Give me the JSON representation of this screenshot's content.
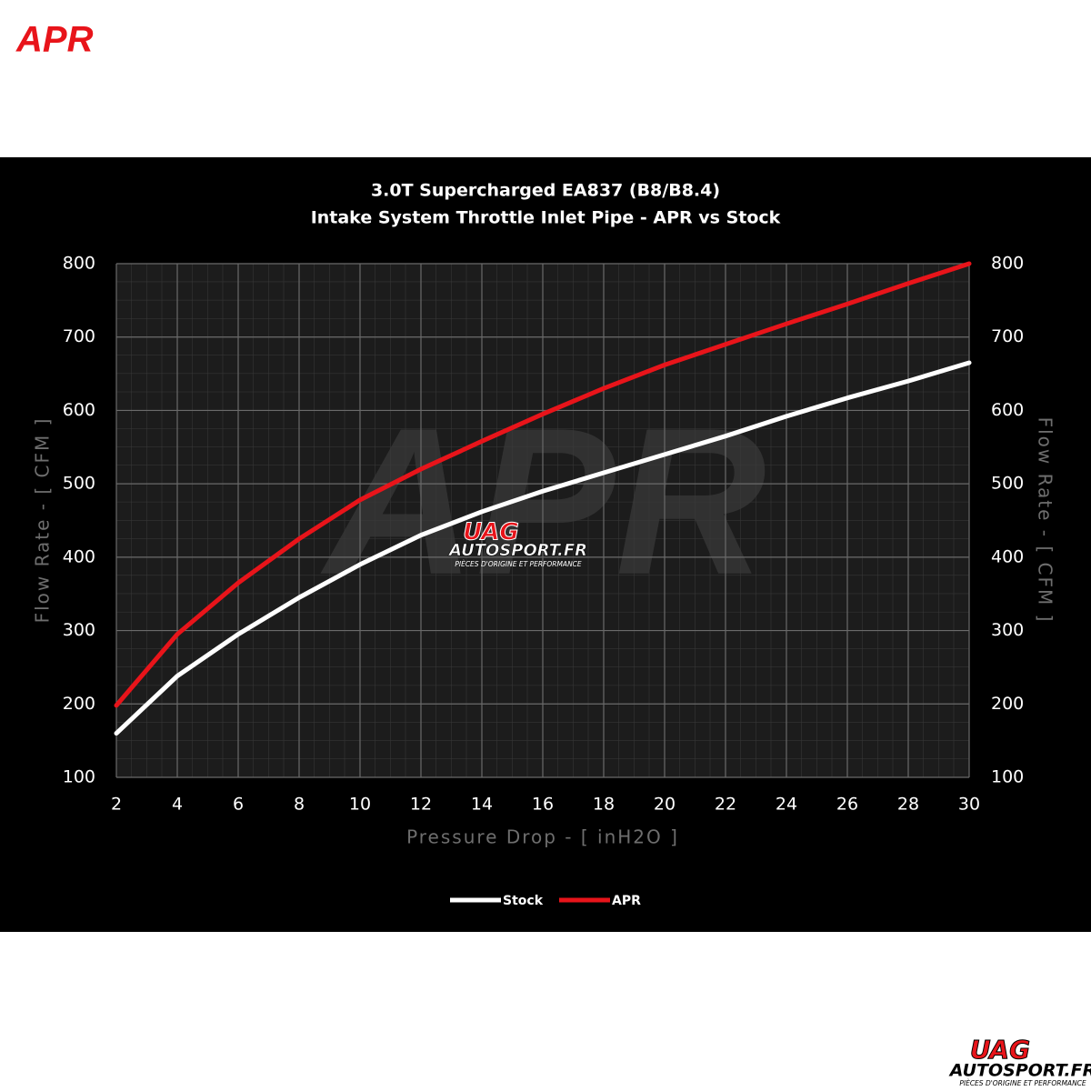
{
  "logo": "APR",
  "watermark": {
    "brand": "UAG",
    "site": "AUTOSPORT.FR",
    "tagline": "PIÈCES D'ORIGINE ET PERFORMANCE"
  },
  "chart_data": {
    "type": "line",
    "title": "3.0T Supercharged EA837 (B8/B8.4)",
    "subtitle": "Intake System Throttle Inlet Pipe - APR vs Stock",
    "x_label": "Pressure Drop - [ inH2O ]",
    "y_label": "Flow Rate - [ CFM ]",
    "x": [
      2,
      4,
      6,
      8,
      10,
      12,
      14,
      16,
      18,
      20,
      22,
      24,
      26,
      28,
      30
    ],
    "series": [
      {
        "name": "Stock",
        "color": "#ffffff",
        "values": [
          160,
          238,
          295,
          345,
          390,
          430,
          462,
          490,
          515,
          540,
          565,
          592,
          617,
          640,
          665
        ]
      },
      {
        "name": "APR",
        "color": "#e8141a",
        "values": [
          198,
          295,
          365,
          425,
          478,
          520,
          558,
          595,
          630,
          662,
          690,
          718,
          745,
          773,
          800
        ]
      }
    ],
    "xlim": [
      2,
      30
    ],
    "ylim": [
      100,
      800
    ],
    "xticks": [
      2,
      4,
      6,
      8,
      10,
      12,
      14,
      16,
      18,
      20,
      22,
      24,
      26,
      28,
      30
    ],
    "yticks": [
      100,
      200,
      300,
      400,
      500,
      600,
      700,
      800
    ],
    "grid": true,
    "legend": "bottom"
  }
}
